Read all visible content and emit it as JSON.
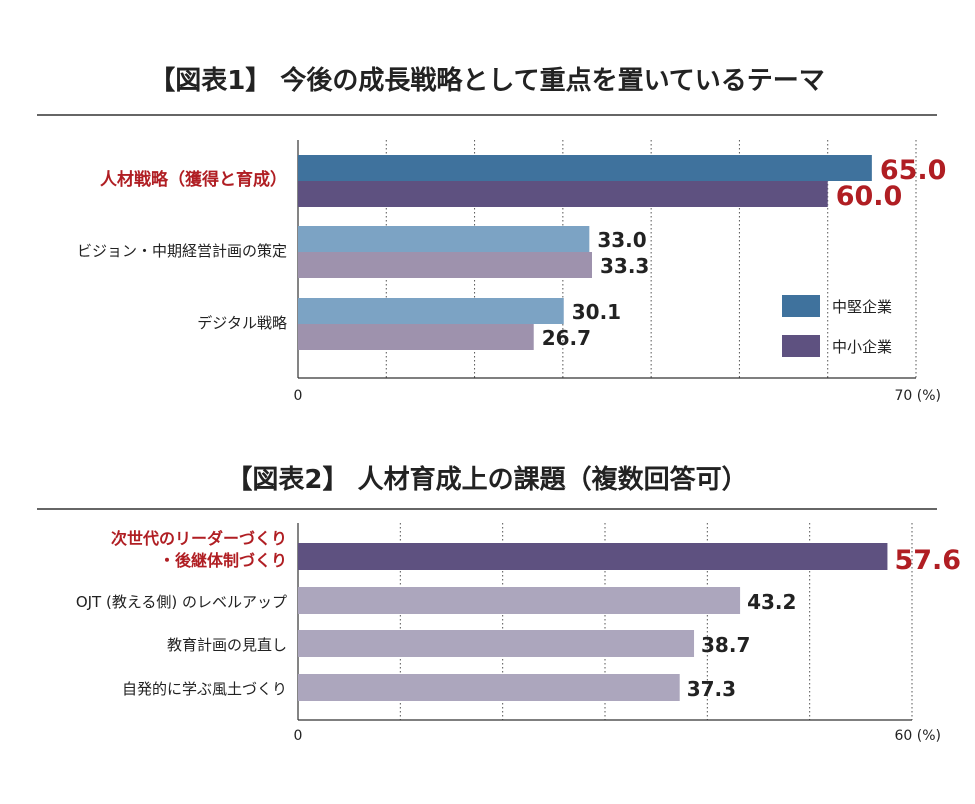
{
  "colors": {
    "highlight_red": "#b01e23",
    "chubo_blue": "#3f729d",
    "chusho_purple": "#5e5180",
    "chubo_blue_light": "#7ca3c4",
    "chusho_purple_light": "#9e92ad",
    "chart2_highlight": "#5e5180",
    "chart2_bar": "#aca6bd",
    "text": "#222222",
    "rule": "#333333",
    "grid": "#555555"
  },
  "chart_data": [
    {
      "type": "bar",
      "orientation": "horizontal",
      "title": "【図表1】 今後の成長戦略として重点を置いているテーマ",
      "categories": [
        "人材戦略（獲得と育成）",
        "ビジョン・中期経営計画の策定",
        "デジタル戦略"
      ],
      "series": [
        {
          "name": "中堅企業",
          "values": [
            65.0,
            33.0,
            30.1
          ],
          "labels": [
            "65.0",
            "33.0",
            "30.1"
          ]
        },
        {
          "name": "中小企業",
          "values": [
            60.0,
            33.3,
            26.7
          ],
          "labels": [
            "60.0",
            "33.3",
            "26.7"
          ]
        }
      ],
      "highlight_index": 0,
      "xlim": [
        0,
        70
      ],
      "tick_labels": [
        "0",
        "70 (%)"
      ],
      "grid": "dotted vertical every 10",
      "legend": [
        {
          "name": "中堅企業"
        },
        {
          "name": "中小企業"
        }
      ],
      "legend_position": "bottom-right"
    },
    {
      "type": "bar",
      "orientation": "horizontal",
      "title": "【図表2】 人材育成上の課題（複数回答可）",
      "categories": [
        [
          "次世代のリーダーづくり",
          "・後継体制づくり"
        ],
        "OJT (教える側) のレベルアップ",
        "教育計画の見直し",
        "自発的に学ぶ風土づくり"
      ],
      "series": [
        {
          "values": [
            57.6,
            43.2,
            38.7,
            37.3
          ],
          "labels": [
            "57.6",
            "43.2",
            "38.7",
            "37.3"
          ]
        }
      ],
      "highlight_index": 0,
      "xlim": [
        0,
        60
      ],
      "tick_labels": [
        "0",
        "60 (%)"
      ],
      "grid": "dotted vertical every 10"
    }
  ]
}
